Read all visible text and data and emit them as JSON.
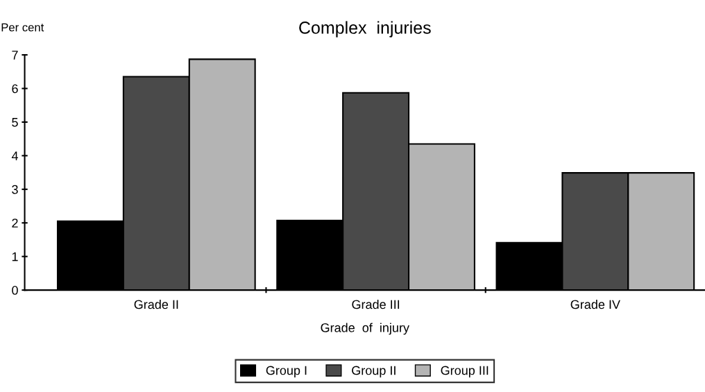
{
  "chart_data": {
    "type": "bar",
    "title": "Complex  injuries",
    "xlabel": "Grade  of  injury",
    "ylabel": "Per cent",
    "categories": [
      "Grade II",
      "Grade III",
      "Grade IV"
    ],
    "series": [
      {
        "name": "Group I",
        "color": "#000000",
        "values": [
          2.05,
          2.07,
          1.41
        ]
      },
      {
        "name": "Group II",
        "color": "#4a4a4a",
        "values": [
          6.35,
          5.87,
          3.49
        ]
      },
      {
        "name": "Group III",
        "color": "#b4b4b4",
        "values": [
          6.87,
          4.35,
          3.49
        ]
      }
    ],
    "ylim": [
      0,
      7
    ],
    "yticks": [
      0,
      1,
      2,
      3,
      4,
      5,
      6,
      7
    ],
    "grid": false,
    "legend": "bottom"
  }
}
